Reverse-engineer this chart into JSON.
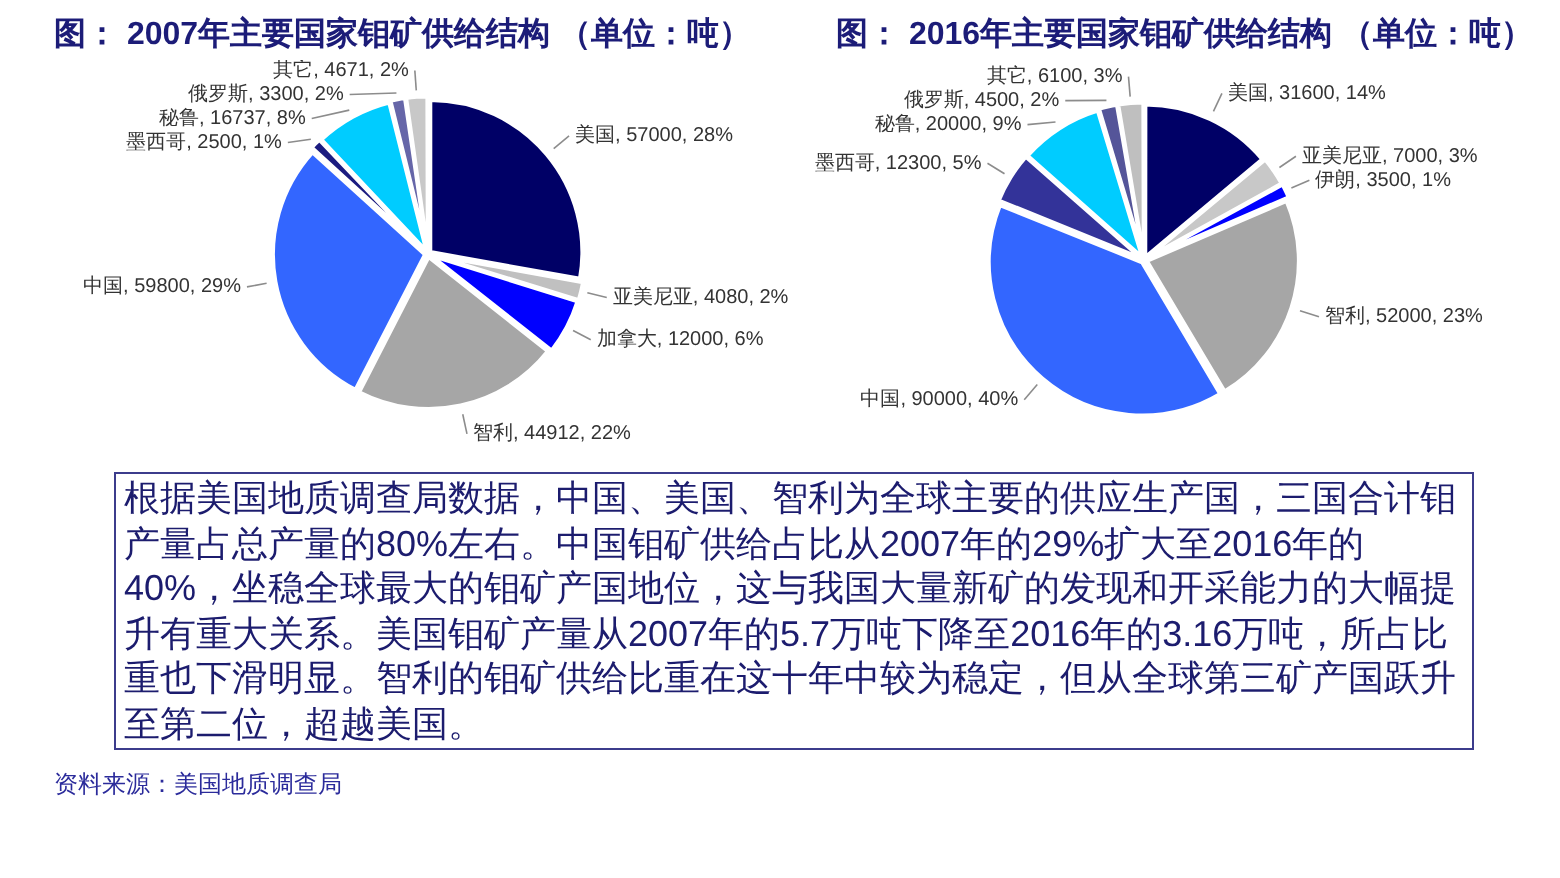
{
  "chart_data": [
    {
      "type": "pie",
      "title": "图： 2007年主要国家钼矿供给结构 （单位：吨）",
      "categories": [
        "美国",
        "亚美尼亚",
        "加拿大",
        "智利",
        "中国",
        "墨西哥",
        "秘鲁",
        "俄罗斯",
        "其它"
      ],
      "values": [
        57000,
        4080,
        12000,
        44912,
        59800,
        2500,
        16737,
        3300,
        4671
      ],
      "colors": [
        "#000066",
        "#c0c0c0",
        "#0000ff",
        "#a6a6a6",
        "#3366ff",
        "#1c1c80",
        "#00ccff",
        "#6666a8",
        "#c8c8c8"
      ],
      "value_labels": [
        "57000, 28%",
        "4080, 2%",
        "12000, 6%",
        "44912, 22%",
        "59800, 29%",
        "2500, 1%",
        "16737, 8%",
        "3300, 2%",
        "4671, 2%"
      ]
    },
    {
      "type": "pie",
      "title": "图： 2016年主要国家钼矿供给结构 （单位：吨）",
      "categories": [
        "美国",
        "亚美尼亚",
        "伊朗",
        "智利",
        "中国",
        "墨西哥",
        "秘鲁",
        "俄罗斯",
        "其它"
      ],
      "values": [
        31600,
        7000,
        3500,
        52000,
        90000,
        12300,
        20000,
        4500,
        6100
      ],
      "colors": [
        "#000066",
        "#c8c8c8",
        "#0000ff",
        "#a6a6a6",
        "#3366ff",
        "#333399",
        "#00ccff",
        "#555599",
        "#bfbfbf"
      ],
      "value_labels": [
        "31600, 14%",
        "7000, 3%",
        "3500, 1%",
        "52000, 23%",
        "90000, 40%",
        "12300, 5%",
        "20000, 9%",
        "4500, 2%",
        "6100, 3%"
      ]
    },
    {
      "type": "other",
      "annotations": [
        "根据美国地质调查局数据，中国、美国、智利为全球主要的供应生产国，三国合计钼产量占总产量的80%左右。中国钼矿供给占比从2007年的29%扩大至2016年的40%，坐稳全球最大的钼矿产国地位，这与我国大量新矿的发现和开采能力的大幅提升有重大关系。美国钼矿产量从2007年的5.7万吨下降至2016年的3.16万吨，所占比重也下滑明显。智利的钼矿供给比重在这十年中较为稳定，但从全球第三矿产国跃升至第二位，超越美国。",
        "资料来源：美国地质调查局"
      ]
    }
  ]
}
